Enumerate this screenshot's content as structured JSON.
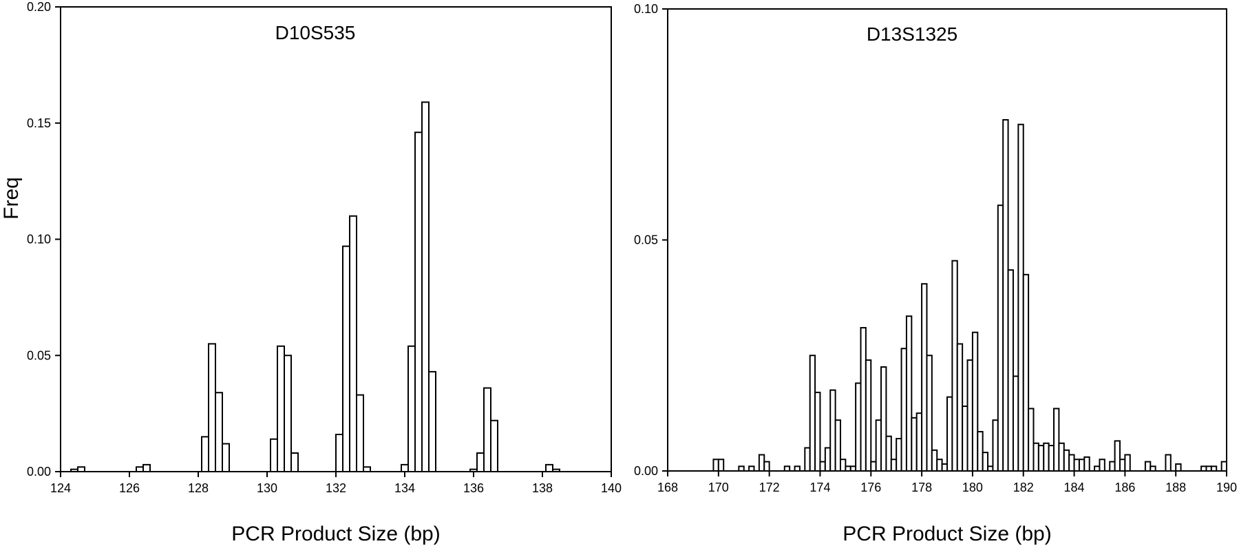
{
  "chart_data": [
    {
      "type": "bar",
      "title": "D10S535",
      "xlabel": "PCR Product Size (bp)",
      "ylabel": "Freq",
      "xlim": [
        124,
        140
      ],
      "ylim": [
        0,
        0.2
      ],
      "xticks": [
        124,
        126,
        128,
        130,
        132,
        134,
        136,
        138,
        140
      ],
      "yticks": [
        0.0,
        0.05,
        0.1,
        0.15,
        0.2
      ],
      "ytick_labels": [
        "0.00",
        "0.05",
        "0.10",
        "0.15",
        "0.20"
      ],
      "grid": false,
      "legend": "none",
      "bin_width": 0.2,
      "x": [
        124.4,
        124.6,
        126.3,
        126.5,
        128.2,
        128.4,
        128.6,
        128.8,
        130.2,
        130.4,
        130.6,
        130.8,
        132.1,
        132.3,
        132.5,
        132.7,
        132.9,
        134.0,
        134.2,
        134.4,
        134.6,
        134.8,
        136.0,
        136.2,
        136.4,
        136.6,
        138.2,
        138.4
      ],
      "values": [
        0.001,
        0.002,
        0.002,
        0.003,
        0.015,
        0.055,
        0.034,
        0.012,
        0.014,
        0.054,
        0.05,
        0.008,
        0.016,
        0.097,
        0.11,
        0.033,
        0.002,
        0.003,
        0.054,
        0.146,
        0.159,
        0.043,
        0.001,
        0.008,
        0.036,
        0.022,
        0.003,
        0.001
      ]
    },
    {
      "type": "bar",
      "title": "D13S1325",
      "xlabel": "PCR Product Size (bp)",
      "ylabel": "",
      "xlim": [
        168,
        190
      ],
      "ylim": [
        0,
        0.1
      ],
      "xticks": [
        168,
        170,
        172,
        174,
        176,
        178,
        180,
        182,
        184,
        186,
        188,
        190
      ],
      "yticks": [
        0.0,
        0.05,
        0.1
      ],
      "ytick_labels": [
        "0.00",
        "0.05",
        "0.10"
      ],
      "grid": false,
      "legend": "none",
      "bin_width": 0.2,
      "x": [
        169.9,
        170.1,
        170.9,
        171.3,
        171.7,
        171.9,
        172.7,
        173.1,
        173.5,
        173.7,
        173.9,
        174.1,
        174.3,
        174.5,
        174.7,
        174.9,
        175.1,
        175.3,
        175.5,
        175.7,
        175.9,
        176.1,
        176.3,
        176.5,
        176.7,
        176.9,
        177.1,
        177.3,
        177.5,
        177.7,
        177.9,
        178.1,
        178.3,
        178.5,
        178.7,
        178.9,
        179.1,
        179.3,
        179.5,
        179.7,
        179.9,
        180.1,
        180.3,
        180.5,
        180.7,
        180.9,
        181.1,
        181.3,
        181.5,
        181.7,
        181.9,
        182.1,
        182.3,
        182.5,
        182.7,
        182.9,
        183.1,
        183.3,
        183.5,
        183.7,
        183.9,
        184.1,
        184.3,
        184.5,
        184.9,
        185.1,
        185.5,
        185.7,
        185.9,
        186.1,
        186.9,
        187.1,
        187.7,
        188.1,
        189.1,
        189.3,
        189.5,
        189.9
      ],
      "values": [
        0.0025,
        0.0025,
        0.001,
        0.001,
        0.0035,
        0.002,
        0.001,
        0.001,
        0.005,
        0.025,
        0.017,
        0.002,
        0.005,
        0.0175,
        0.011,
        0.0025,
        0.001,
        0.001,
        0.019,
        0.031,
        0.024,
        0.002,
        0.011,
        0.0225,
        0.0075,
        0.0025,
        0.007,
        0.0265,
        0.0335,
        0.0115,
        0.0125,
        0.0405,
        0.025,
        0.0045,
        0.0025,
        0.0015,
        0.016,
        0.0455,
        0.0275,
        0.014,
        0.024,
        0.03,
        0.0085,
        0.004,
        0.001,
        0.011,
        0.0575,
        0.076,
        0.0435,
        0.0205,
        0.075,
        0.0425,
        0.0135,
        0.006,
        0.0055,
        0.006,
        0.0055,
        0.0135,
        0.006,
        0.0045,
        0.0035,
        0.0025,
        0.0025,
        0.003,
        0.001,
        0.0025,
        0.002,
        0.0065,
        0.0025,
        0.0035,
        0.002,
        0.001,
        0.0035,
        0.0015,
        0.001,
        0.001,
        0.001,
        0.002
      ]
    }
  ]
}
